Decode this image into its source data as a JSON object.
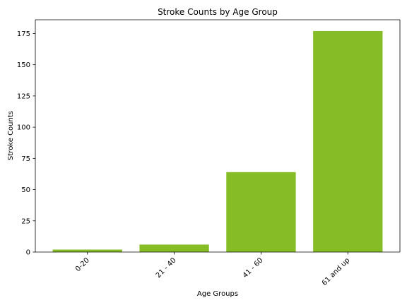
{
  "chart_data": {
    "type": "bar",
    "title": "Stroke Counts by Age Group",
    "xlabel": "Age Groups",
    "ylabel": "Stroke Counts",
    "categories": [
      "0-20",
      "21 - 40",
      "41 - 60",
      "61 and up"
    ],
    "values": [
      2,
      6,
      64,
      177
    ],
    "ylim": [
      0,
      186
    ],
    "yticks": [
      "0",
      "25",
      "50",
      "75",
      "100",
      "125",
      "150",
      "175"
    ],
    "bar_color": "#86bc25",
    "grid": false,
    "legend": "none"
  }
}
